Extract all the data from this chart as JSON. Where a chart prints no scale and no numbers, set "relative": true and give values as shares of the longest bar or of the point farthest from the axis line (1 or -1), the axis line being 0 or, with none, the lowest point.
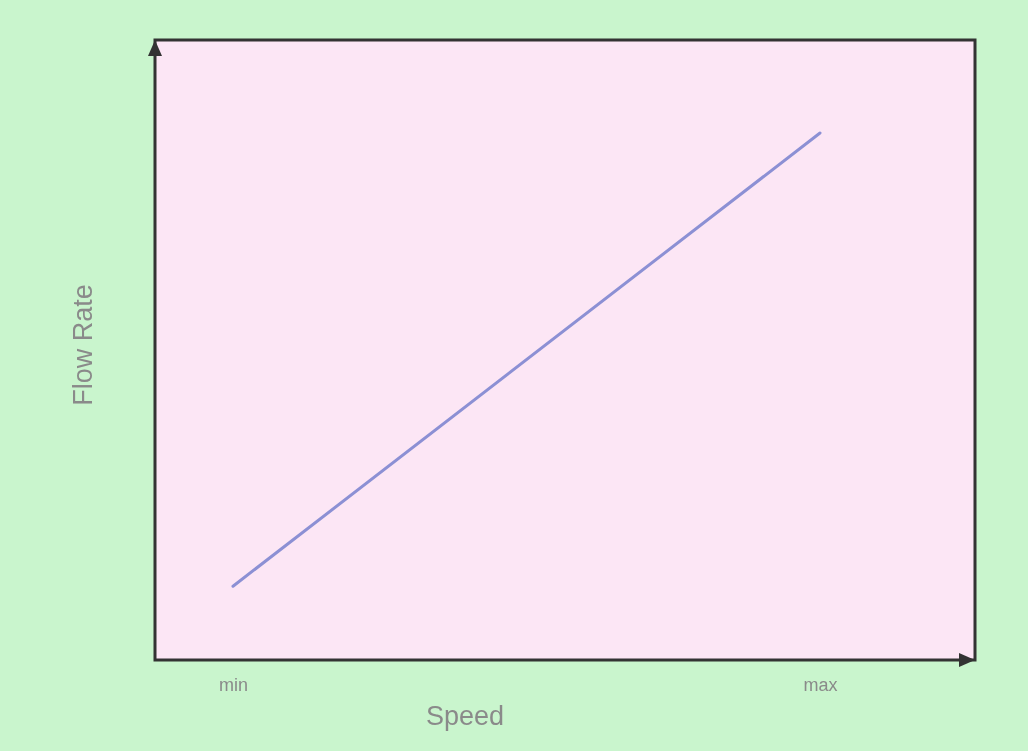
{
  "chart_data": {
    "type": "line",
    "xlabel": "Speed",
    "ylabel": "Flow Rate",
    "categories": [
      "min",
      "max"
    ],
    "relative": true,
    "series": [
      {
        "color": "#8c90d4",
        "values": [
          0.14,
          1
        ]
      }
    ]
  }
}
